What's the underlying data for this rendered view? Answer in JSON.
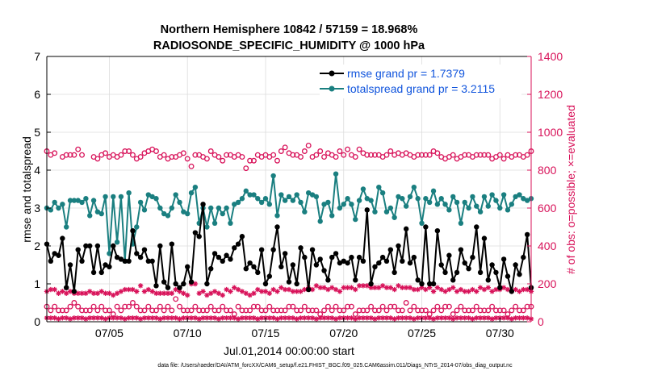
{
  "chart_data": {
    "type": "line",
    "title": "Northern Hemisphere 10842 / 57159 = 18.968%",
    "subtitle": "RADIOSONDE_SPECIFIC_HUMIDITY @ 1000 hPa",
    "xlabel": "Jul.01,2014 00:00:00 start",
    "ylabel_left": "rmse and totalspread",
    "ylabel_right": "# of obs: o=possible; ×=evaluated",
    "ylim_left": [
      0,
      7
    ],
    "ylim_right": [
      0,
      1400
    ],
    "yticks_left": [
      "0",
      "1",
      "2",
      "3",
      "4",
      "5",
      "6",
      "7"
    ],
    "yticks_right": [
      "0",
      "200",
      "400",
      "600",
      "800",
      "1000",
      "1200",
      "1400"
    ],
    "xlim_days": [
      1,
      32
    ],
    "x_step_days": 0.25,
    "xticks": [
      {
        "day": 5,
        "label": "07/05"
      },
      {
        "day": 10,
        "label": "07/10"
      },
      {
        "day": 15,
        "label": "07/15"
      },
      {
        "day": 20,
        "label": "07/20"
      },
      {
        "day": 25,
        "label": "07/25"
      },
      {
        "day": 30,
        "label": "07/30"
      }
    ],
    "legend": [
      {
        "label": "rmse grand pr = 1.7379",
        "color": "#000000"
      },
      {
        "label": "totalspread grand pr = 3.2115",
        "color": "#1a7f80"
      }
    ],
    "colors": {
      "rmse": "#000000",
      "totalspread": "#1a7f80",
      "obs": "#d8135a",
      "legend_text": "#1155dd",
      "axis": "#000000"
    },
    "series": [
      {
        "name": "rmse",
        "axis": "left",
        "values": [
          2.05,
          1.6,
          1.8,
          1.75,
          2.2,
          0.9,
          1.5,
          0.8,
          1.9,
          1.6,
          2.0,
          2.0,
          1.3,
          2.0,
          1.3,
          1.5,
          1.45,
          2.0,
          1.7,
          1.65,
          1.6,
          1.6,
          2.4,
          1.8,
          1.7,
          1.9,
          1.6,
          1.6,
          0.95,
          2.0,
          1.05,
          0.9,
          2.05,
          1.0,
          0.9,
          1.0,
          1.45,
          1.05,
          2.35,
          2.25,
          3.1,
          1.0,
          1.4,
          1.8,
          1.7,
          1.6,
          1.75,
          1.65,
          1.95,
          2.05,
          2.25,
          1.4,
          1.55,
          1.45,
          1.3,
          1.9,
          1.0,
          1.2,
          1.9,
          2.5,
          1.45,
          1.8,
          1.05,
          1.5,
          1.0,
          1.95,
          1.7,
          0.85,
          1.9,
          1.5,
          1.65,
          1.35,
          1.1,
          1.7,
          1.8,
          1.55,
          1.6,
          1.55,
          1.7,
          1.1,
          1.7,
          1.6,
          2.95,
          1.0,
          1.45,
          1.55,
          1.7,
          1.6,
          1.9,
          1.3,
          2.0,
          1.6,
          2.45,
          1.55,
          1.7,
          1.1,
          1.0,
          2.5,
          1.0,
          1.0,
          2.4,
          1.5,
          1.3,
          1.75,
          1.1,
          1.3,
          1.9,
          1.55,
          1.4,
          1.7,
          2.5,
          1.3,
          2.2,
          1.1,
          1.5,
          1.3,
          0.9,
          1.65,
          1.2,
          0.8,
          1.5,
          1.25,
          1.7,
          2.3,
          0.9,
          1.9,
          1.7,
          2.5,
          1.3,
          2.2,
          1.4,
          0.95,
          1.9,
          0.65,
          1.0,
          0.8,
          1.2,
          1.85,
          1.9,
          2.0,
          0.85,
          1.5,
          2.7
        ]
      },
      {
        "name": "totalspread",
        "axis": "left",
        "values": [
          3.0,
          2.95,
          3.15,
          3.0,
          3.1,
          2.5,
          3.2,
          3.2,
          3.2,
          3.15,
          3.25,
          2.8,
          3.2,
          2.9,
          2.85,
          3.3,
          1.8,
          3.3,
          2.1,
          3.3,
          1.6,
          3.4,
          2.05,
          2.5,
          3.15,
          2.95,
          3.35,
          3.3,
          3.25,
          3.0,
          2.85,
          2.8,
          3.0,
          3.35,
          3.15,
          2.9,
          2.85,
          3.4,
          3.55,
          2.6,
          3.0,
          2.5,
          3.0,
          2.6,
          3.0,
          2.85,
          3.0,
          2.6,
          3.1,
          3.15,
          3.25,
          3.45,
          3.35,
          3.35,
          3.25,
          3.15,
          3.25,
          3.1,
          3.85,
          2.8,
          3.35,
          3.2,
          3.3,
          3.2,
          3.35,
          3.15,
          2.9,
          3.4,
          3.35,
          3.3,
          2.65,
          3.1,
          3.15,
          2.8,
          3.9,
          3.0,
          3.1,
          3.25,
          3.1,
          2.7,
          3.2,
          3.5,
          3.25,
          3.2,
          2.9,
          3.55,
          3.4,
          2.9,
          3.0,
          2.75,
          3.3,
          3.25,
          3.05,
          3.3,
          3.55,
          3.25,
          2.6,
          3.25,
          3.15,
          3.45,
          3.1,
          3.25,
          3.1,
          2.95,
          3.3,
          3.15,
          2.6,
          3.15,
          3.0,
          3.3,
          3.05,
          2.9,
          3.3,
          3.05,
          3.35,
          3.2,
          3.0,
          3.35,
          2.95,
          3.1,
          3.3,
          3.35,
          3.25,
          3.2,
          3.25,
          2.85,
          3.35,
          2.95,
          2.55,
          3.4,
          3.05,
          3.35,
          2.05,
          3.45,
          3.25,
          3.55,
          2.0,
          3.35,
          3.25,
          3.5,
          3.65
        ]
      },
      {
        "name": "obs_possible_high",
        "axis": "right",
        "marker": "o",
        "values": [
          900,
          880,
          890,
          null,
          870,
          880,
          880,
          880,
          910,
          880,
          null,
          null,
          870,
          860,
          880,
          890,
          870,
          880,
          870,
          880,
          900,
          900,
          880,
          860,
          870,
          890,
          900,
          910,
          900,
          870,
          880,
          860,
          870,
          870,
          880,
          890,
          860,
          820,
          880,
          880,
          870,
          860,
          900,
          880,
          870,
          850,
          880,
          880,
          870,
          880,
          870,
          810,
          850,
          850,
          880,
          870,
          880,
          870,
          880,
          850,
          900,
          920,
          890,
          880,
          880,
          870,
          900,
          930,
          870,
          880,
          900,
          870,
          890,
          880,
          870,
          900,
          880,
          910,
          880,
          870,
          910,
          890,
          880,
          880,
          880,
          880,
          870,
          880,
          900,
          880,
          890,
          880,
          890,
          880,
          870,
          880,
          880,
          880,
          880,
          900,
          890,
          870,
          860,
          870,
          880,
          860,
          870,
          880,
          880,
          870,
          880,
          880,
          880,
          880,
          860,
          870,
          880,
          860,
          880,
          870,
          880,
          880,
          870,
          880,
          900,
          880,
          860,
          880,
          850,
          880,
          900,
          880,
          880,
          860,
          880,
          870,
          860,
          920,
          870,
          880,
          880
        ]
      },
      {
        "name": "obs_evaluated_high",
        "axis": "right",
        "marker": "x",
        "values": [
          160,
          170,
          170,
          150,
          160,
          150,
          160,
          150,
          150,
          150,
          150,
          160,
          150,
          150,
          160,
          150,
          150,
          140,
          150,
          160,
          170,
          170,
          170,
          160,
          190,
          160,
          170,
          160,
          150,
          150,
          150,
          150,
          150,
          170,
          160,
          150,
          140,
          200,
          200,
          150,
          160,
          140,
          150,
          160,
          150,
          140,
          170,
          160,
          180,
          170,
          160,
          150,
          140,
          150,
          170,
          160,
          160,
          150,
          170,
          160,
          180,
          170,
          170,
          160,
          160,
          160,
          170,
          180,
          170,
          190,
          180,
          180,
          170,
          180,
          170,
          160,
          180,
          180,
          180,
          170,
          190,
          190,
          190,
          180,
          180,
          180,
          190,
          180,
          180,
          170,
          190,
          180,
          180,
          180,
          170,
          170,
          180,
          170,
          180,
          160,
          180,
          170,
          160,
          170,
          180,
          160,
          170,
          160,
          160,
          170,
          160,
          180,
          170,
          180,
          160,
          170,
          170,
          180,
          170,
          160,
          170,
          160,
          170,
          170,
          160,
          160,
          180,
          170,
          160,
          170,
          150,
          170,
          160,
          160,
          150,
          160,
          160,
          160,
          160,
          160,
          160
        ]
      },
      {
        "name": "obs_possible_low",
        "axis": "right",
        "marker": "o",
        "values": [
          80,
          60,
          80,
          60,
          60,
          60,
          80,
          100,
          80,
          60,
          60,
          60,
          80,
          60,
          80,
          60,
          60,
          40,
          80,
          60,
          80,
          80,
          100,
          80,
          60,
          60,
          80,
          60,
          60,
          80,
          60,
          80,
          60,
          120,
          80,
          60,
          60,
          60,
          80,
          60,
          60,
          60,
          80,
          60,
          60,
          80,
          60,
          60,
          40,
          80,
          60,
          60,
          60,
          80,
          80,
          60,
          60,
          80,
          60,
          60,
          60,
          60,
          80,
          80,
          60,
          60,
          80,
          60,
          60,
          60,
          40,
          60,
          80,
          60,
          80,
          60,
          60,
          80,
          80,
          40,
          60,
          60,
          60,
          80,
          60,
          60,
          80,
          60,
          80,
          80,
          60,
          60,
          100,
          60,
          80,
          60,
          60,
          60,
          40,
          60,
          80,
          60,
          80,
          80,
          40,
          60,
          80,
          60,
          60,
          60,
          80,
          60,
          60,
          60,
          80,
          60,
          60,
          60,
          40,
          60,
          80,
          60,
          60,
          80,
          80,
          60,
          60,
          60,
          60,
          60,
          80,
          60,
          60,
          60,
          40,
          60,
          60,
          40,
          80,
          60,
          60
        ]
      },
      {
        "name": "obs_evaluated_low",
        "axis": "right",
        "marker": "x",
        "values": [
          20,
          20,
          20,
          15,
          20,
          20,
          15,
          20,
          20,
          20,
          15,
          20,
          20,
          20,
          20,
          15,
          20,
          20,
          20,
          20,
          15,
          20,
          20,
          20,
          15,
          20,
          20,
          20,
          20,
          15,
          20,
          20,
          20,
          20,
          15,
          20,
          20,
          20,
          20,
          15,
          20,
          20,
          20,
          20,
          15,
          20,
          20,
          20,
          20,
          15,
          20,
          20,
          20,
          20,
          15,
          20,
          20,
          20,
          20,
          15,
          20,
          20,
          20,
          20,
          15,
          20,
          20,
          20,
          20,
          15,
          20,
          20,
          20,
          20,
          15,
          20,
          20,
          20,
          20,
          15,
          20,
          20,
          20,
          20,
          15,
          20,
          20,
          20,
          20,
          15,
          20,
          20,
          20,
          20,
          15,
          20,
          20,
          20,
          20,
          15,
          20,
          20,
          20,
          20,
          15,
          20,
          20,
          20,
          20,
          15,
          20,
          20,
          20,
          20,
          15,
          20,
          20,
          20,
          20,
          15,
          20,
          20,
          20,
          20,
          15,
          20,
          20,
          20,
          20,
          15,
          20,
          20,
          20,
          20,
          15,
          20,
          20,
          20,
          20,
          15,
          20
        ]
      }
    ]
  },
  "footer_text": "data file: /Users/raeder/DAI/ATM_forcXX/CAM6_setup/f.e21.FHIST_BGC.f09_025.CAM6assim.011/Diags_NTrS_2014-07/obs_diag_output.nc"
}
